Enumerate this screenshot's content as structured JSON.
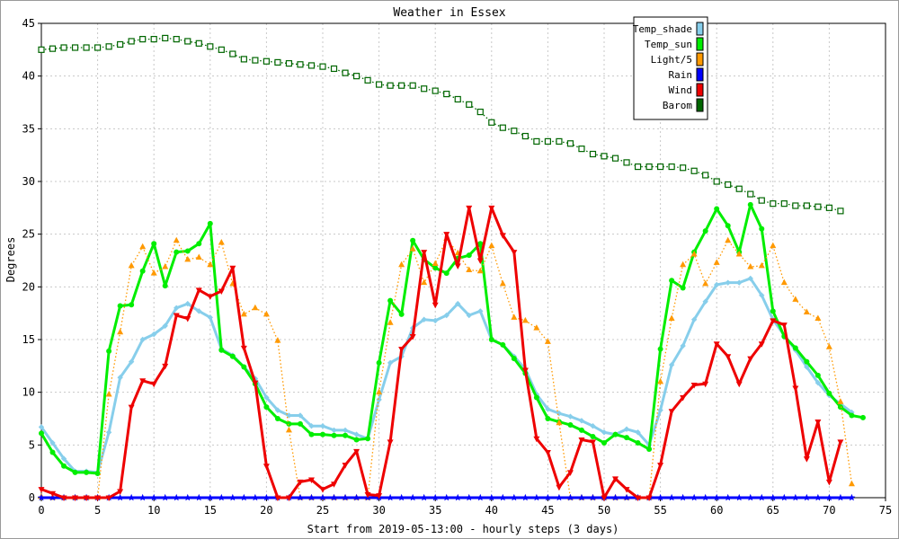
{
  "chart_data": {
    "type": "line",
    "title": "Weather in Essex",
    "xlabel": "Start from 2019-05-13:00 - hourly steps (3 days)",
    "ylabel": "Degrees",
    "xlim": [
      0,
      75
    ],
    "ylim": [
      0,
      45
    ],
    "xticks": [
      0,
      5,
      10,
      15,
      20,
      25,
      30,
      35,
      40,
      45,
      50,
      55,
      60,
      65,
      70,
      75
    ],
    "yticks": [
      0,
      5,
      10,
      15,
      20,
      25,
      30,
      35,
      40,
      45
    ],
    "grid": true,
    "legend_position": "top-right",
    "series": [
      {
        "name": "Temp_shade",
        "color": "#87ceeb",
        "marker": "diamond",
        "line": "solid",
        "values": [
          6.7,
          5.2,
          3.7,
          2.5,
          2.5,
          2.4,
          6.2,
          11.4,
          12.9,
          15.0,
          15.5,
          16.3,
          18.0,
          18.4,
          17.7,
          17.1,
          14.1,
          13.5,
          12.4,
          11.3,
          9.5,
          8.3,
          7.8,
          7.8,
          6.8,
          6.8,
          6.4,
          6.4,
          6.0,
          5.6,
          9.3,
          12.8,
          13.4,
          16.1,
          16.9,
          16.8,
          17.3,
          18.4,
          17.3,
          17.7,
          15.0,
          14.5,
          13.4,
          12.2,
          9.8,
          8.4,
          8.0,
          7.7,
          7.3,
          6.8,
          6.2,
          6.0,
          6.5,
          6.2,
          5.0,
          8.3,
          12.6,
          14.4,
          16.9,
          18.6,
          20.2,
          20.4,
          20.4,
          20.8,
          19.2,
          16.9,
          15.4,
          14.0,
          12.4,
          10.9,
          9.7,
          8.9,
          8.1
        ]
      },
      {
        "name": "Temp_sun",
        "color": "#00ee00",
        "marker": "circle",
        "line": "solid",
        "values": [
          6.1,
          4.3,
          3.0,
          2.4,
          2.4,
          2.3,
          13.9,
          18.2,
          18.3,
          21.5,
          24.1,
          20.1,
          23.3,
          23.4,
          24.1,
          26.0,
          14.0,
          13.4,
          12.4,
          10.8,
          8.6,
          7.5,
          7.0,
          7.0,
          6.0,
          6.0,
          5.9,
          5.9,
          5.5,
          5.6,
          12.8,
          18.7,
          17.4,
          24.4,
          22.6,
          21.8,
          21.3,
          22.7,
          23.0,
          24.1,
          15.0,
          14.5,
          13.2,
          11.8,
          9.5,
          7.5,
          7.2,
          6.9,
          6.4,
          5.8,
          5.2,
          6.0,
          5.7,
          5.2,
          4.6,
          14.1,
          20.6,
          19.9,
          23.3,
          25.3,
          27.4,
          25.8,
          23.3,
          27.8,
          25.5,
          17.7,
          15.3,
          14.2,
          12.9,
          11.6,
          9.9,
          8.6,
          7.8,
          7.6
        ]
      },
      {
        "name": "Light/5",
        "color": "#ff9900",
        "marker": "triangle-up",
        "line": "dotted",
        "values": [
          0.1,
          0.0,
          0.0,
          0.0,
          0.0,
          0.0,
          9.8,
          15.7,
          22.0,
          23.8,
          21.3,
          21.9,
          24.4,
          22.6,
          22.8,
          22.1,
          24.2,
          20.3,
          17.4,
          18.0,
          17.4,
          14.9,
          6.4,
          0.0,
          0.0,
          0.0,
          0.0,
          0.0,
          0.0,
          0.0,
          10.0,
          16.6,
          22.1,
          23.6,
          20.4,
          22.2,
          24.6,
          23.2,
          21.6,
          21.5,
          23.9,
          20.3,
          17.1,
          16.8,
          16.1,
          14.8,
          7.1,
          0.0,
          0.0,
          0.0,
          0.0,
          0.0,
          0.0,
          0.0,
          0.0,
          11.0,
          17.0,
          22.1,
          23.1,
          20.3,
          22.3,
          24.4,
          23.1,
          21.9,
          22.0,
          23.9,
          20.4,
          18.8,
          17.6,
          17.0,
          14.3,
          9.1,
          1.3
        ]
      },
      {
        "name": "Rain",
        "color": "#0000ff",
        "marker": "star",
        "line": "solid",
        "values": [
          0,
          0,
          0,
          0,
          0,
          0,
          0,
          0,
          0,
          0,
          0,
          0,
          0,
          0,
          0,
          0,
          0,
          0,
          0,
          0,
          0,
          0,
          0,
          0,
          0,
          0,
          0,
          0,
          0,
          0,
          0,
          0,
          0,
          0,
          0,
          0,
          0,
          0,
          0,
          0,
          0,
          0,
          0,
          0,
          0,
          0,
          0,
          0,
          0,
          0,
          0,
          0,
          0,
          0,
          0,
          0,
          0,
          0,
          0,
          0,
          0,
          0,
          0,
          0,
          0,
          0,
          0,
          0,
          0,
          0,
          0,
          0,
          0
        ]
      },
      {
        "name": "Wind",
        "color": "#ee0000",
        "marker": "triangle-down",
        "line": "solid",
        "values": [
          0.8,
          0.4,
          0.0,
          0.0,
          0.0,
          0.0,
          0.0,
          0.6,
          8.6,
          11.1,
          10.8,
          12.5,
          17.3,
          17.0,
          19.7,
          19.1,
          19.6,
          21.8,
          14.2,
          10.9,
          3.0,
          0.0,
          0.0,
          1.5,
          1.7,
          0.8,
          1.3,
          3.1,
          4.4,
          0.3,
          0.2,
          5.3,
          14.1,
          15.3,
          23.3,
          18.3,
          25.0,
          22.0,
          27.5,
          22.5,
          27.5,
          24.9,
          23.3,
          12.1,
          5.6,
          4.3,
          1.0,
          2.4,
          5.5,
          5.3,
          0.0,
          1.8,
          0.8,
          0.0,
          0.0,
          3.1,
          8.2,
          9.5,
          10.7,
          10.8,
          14.6,
          13.4,
          10.8,
          13.2,
          14.6,
          16.8,
          16.4,
          10.4,
          3.7,
          7.2,
          1.5,
          5.3
        ]
      },
      {
        "name": "Barom",
        "color": "#006600",
        "marker": "square",
        "line": "dotted",
        "values": [
          42.5,
          42.6,
          42.7,
          42.7,
          42.7,
          42.7,
          42.8,
          43.0,
          43.3,
          43.5,
          43.5,
          43.6,
          43.5,
          43.3,
          43.1,
          42.8,
          42.5,
          42.1,
          41.6,
          41.5,
          41.4,
          41.3,
          41.2,
          41.1,
          41.0,
          40.9,
          40.7,
          40.3,
          40.0,
          39.6,
          39.2,
          39.1,
          39.1,
          39.1,
          38.8,
          38.6,
          38.3,
          37.8,
          37.3,
          36.6,
          35.6,
          35.1,
          34.8,
          34.3,
          33.8,
          33.8,
          33.8,
          33.6,
          33.1,
          32.6,
          32.4,
          32.2,
          31.8,
          31.4,
          31.4,
          31.4,
          31.4,
          31.3,
          31.0,
          30.6,
          30.0,
          29.7,
          29.3,
          28.8,
          28.2,
          27.9,
          27.9,
          27.7,
          27.7,
          27.6,
          27.5,
          27.2
        ]
      }
    ]
  }
}
